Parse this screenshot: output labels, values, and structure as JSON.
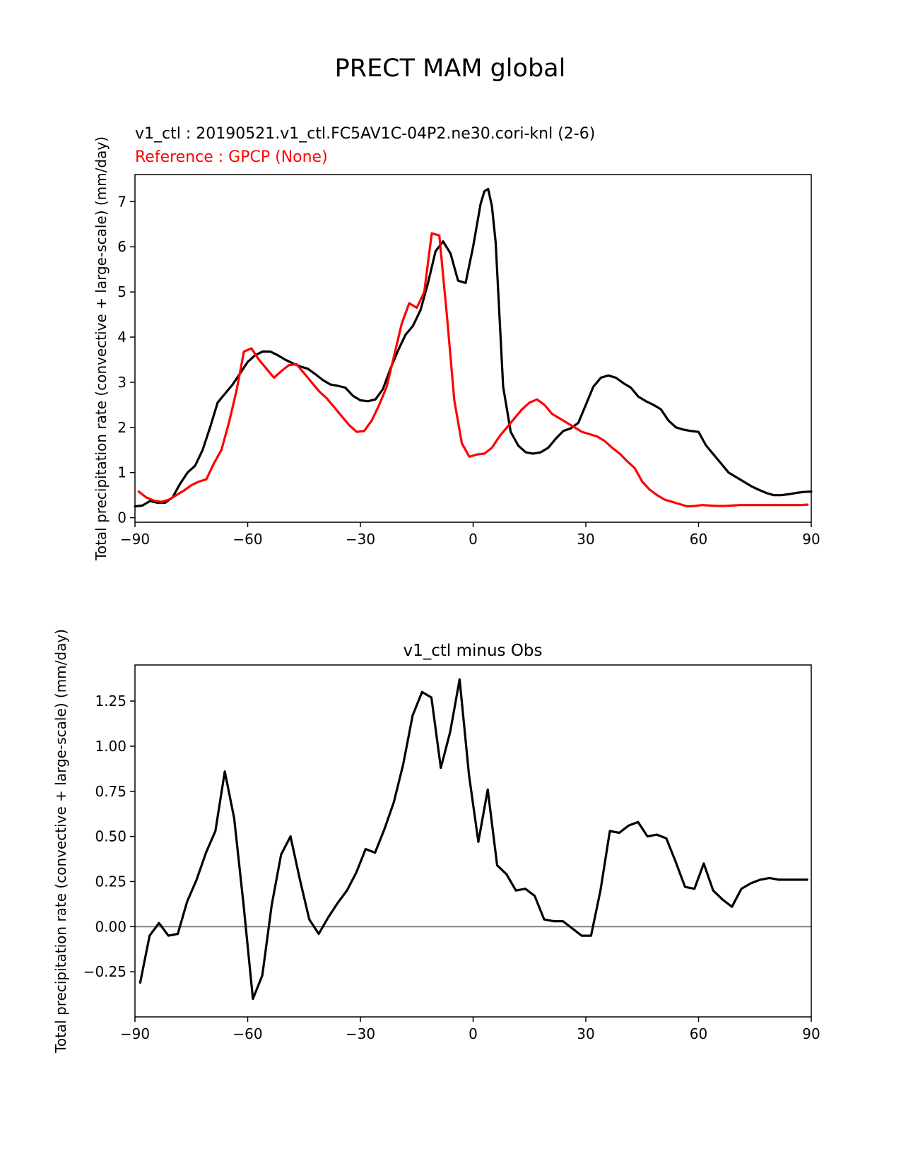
{
  "figure": {
    "title": "PRECT MAM global",
    "colors": {
      "test": "#000000",
      "reference": "#ff0000",
      "zero_line": "#808080"
    }
  },
  "chart_data": [
    {
      "type": "line",
      "subtitle_test": "v1_ctl : 20190521.v1_ctl.FC5AV1C-04P2.ne30.cori-knl (2-6)",
      "subtitle_reference": "Reference : GPCP (None)",
      "xlabel": "",
      "ylabel": "Total precipitation rate (convective + large-scale) (mm/day)",
      "xlim": [
        -90,
        90
      ],
      "ylim": [
        -0.1,
        7.6
      ],
      "xticks": [
        -90,
        -60,
        -30,
        0,
        30,
        60,
        90
      ],
      "xtick_labels": [
        "−90",
        "−60",
        "−30",
        "0",
        "30",
        "60",
        "90"
      ],
      "yticks": [
        0,
        1,
        2,
        3,
        4,
        5,
        6,
        7
      ],
      "ytick_labels": [
        "0",
        "1",
        "2",
        "3",
        "4",
        "5",
        "6",
        "7"
      ],
      "grid": false,
      "series": [
        {
          "color": "#000000",
          "x": [
            -90,
            -88,
            -86,
            -84,
            -82,
            -80,
            -78,
            -76,
            -74,
            -72,
            -70,
            -68,
            -66,
            -64,
            -62,
            -60,
            -58,
            -56,
            -54,
            -52,
            -50,
            -48,
            -46,
            -44,
            -42,
            -40,
            -38,
            -36,
            -34,
            -32,
            -30,
            -28,
            -26,
            -24,
            -22,
            -20,
            -18,
            -16,
            -14,
            -12,
            -10,
            -8,
            -6,
            -4,
            -2,
            0,
            2,
            3,
            4,
            5,
            6,
            7,
            8,
            10,
            12,
            14,
            16,
            18,
            20,
            22,
            24,
            26,
            28,
            30,
            32,
            34,
            36,
            38,
            40,
            42,
            44,
            46,
            48,
            50,
            52,
            54,
            56,
            58,
            60,
            62,
            64,
            66,
            68,
            70,
            72,
            74,
            76,
            78,
            80,
            82,
            84,
            86,
            88,
            90
          ],
          "y": [
            0.25,
            0.27,
            0.37,
            0.33,
            0.33,
            0.45,
            0.75,
            1.0,
            1.15,
            1.5,
            2.0,
            2.55,
            2.75,
            2.95,
            3.2,
            3.45,
            3.6,
            3.68,
            3.68,
            3.6,
            3.5,
            3.42,
            3.35,
            3.3,
            3.18,
            3.05,
            2.95,
            2.92,
            2.88,
            2.7,
            2.6,
            2.58,
            2.62,
            2.85,
            3.3,
            3.7,
            4.05,
            4.25,
            4.6,
            5.2,
            5.9,
            6.12,
            5.85,
            5.25,
            5.2,
            6.0,
            6.95,
            7.23,
            7.28,
            6.9,
            6.1,
            4.5,
            2.9,
            1.9,
            1.6,
            1.45,
            1.42,
            1.45,
            1.55,
            1.75,
            1.92,
            1.98,
            2.1,
            2.5,
            2.9,
            3.1,
            3.15,
            3.1,
            2.98,
            2.88,
            2.68,
            2.58,
            2.5,
            2.4,
            2.15,
            2.0,
            1.95,
            1.92,
            1.9,
            1.6,
            1.4,
            1.2,
            1.0,
            0.9,
            0.8,
            0.7,
            0.62,
            0.55,
            0.5,
            0.5,
            0.52,
            0.55,
            0.57,
            0.58
          ]
        },
        {
          "color": "#ff0000",
          "x": [
            -89,
            -87,
            -85,
            -83,
            -81,
            -79,
            -77,
            -75,
            -73,
            -71,
            -69,
            -67,
            -65,
            -63,
            -61,
            -59,
            -57,
            -55,
            -53,
            -51,
            -49,
            -47,
            -45,
            -43,
            -41,
            -39,
            -37,
            -35,
            -33,
            -31,
            -29,
            -27,
            -25,
            -23,
            -21,
            -19,
            -17,
            -15,
            -13,
            -11,
            -9,
            -7,
            -5,
            -3,
            -1,
            1,
            3,
            5,
            7,
            9,
            11,
            13,
            15,
            17,
            19,
            21,
            23,
            25,
            27,
            29,
            31,
            33,
            35,
            37,
            39,
            41,
            43,
            45,
            47,
            49,
            51,
            53,
            55,
            57,
            59,
            61,
            63,
            65,
            67,
            69,
            71,
            73,
            75,
            77,
            79,
            81,
            83,
            85,
            87,
            89
          ],
          "y": [
            0.58,
            0.45,
            0.38,
            0.35,
            0.4,
            0.5,
            0.6,
            0.72,
            0.8,
            0.85,
            1.2,
            1.5,
            2.1,
            2.8,
            3.68,
            3.75,
            3.5,
            3.3,
            3.1,
            3.25,
            3.38,
            3.4,
            3.2,
            3.0,
            2.8,
            2.65,
            2.45,
            2.25,
            2.05,
            1.9,
            1.92,
            2.15,
            2.5,
            2.9,
            3.6,
            4.3,
            4.75,
            4.65,
            5.0,
            6.3,
            6.25,
            4.5,
            2.6,
            1.65,
            1.35,
            1.4,
            1.42,
            1.55,
            1.8,
            2.0,
            2.2,
            2.4,
            2.55,
            2.62,
            2.5,
            2.3,
            2.2,
            2.1,
            2.0,
            1.9,
            1.85,
            1.8,
            1.7,
            1.55,
            1.42,
            1.25,
            1.1,
            0.8,
            0.62,
            0.5,
            0.4,
            0.35,
            0.3,
            0.25,
            0.26,
            0.28,
            0.27,
            0.26,
            0.26,
            0.27,
            0.28,
            0.28,
            0.28,
            0.28,
            0.28,
            0.28,
            0.28,
            0.28,
            0.28,
            0.29
          ]
        }
      ]
    },
    {
      "type": "line",
      "title": "v1_ctl minus Obs",
      "xlabel": "",
      "ylabel": "Total precipitation rate (convective + large-scale) (mm/day)",
      "xlim": [
        -90,
        90
      ],
      "ylim": [
        -0.5,
        1.45
      ],
      "xticks": [
        -90,
        -60,
        -30,
        0,
        30,
        60,
        90
      ],
      "xtick_labels": [
        "−90",
        "−60",
        "−30",
        "0",
        "30",
        "60",
        "90"
      ],
      "yticks": [
        -0.25,
        0.0,
        0.25,
        0.5,
        0.75,
        1.0,
        1.25
      ],
      "ytick_labels": [
        "−0.25",
        "0.00",
        "0.25",
        "0.50",
        "0.75",
        "1.00",
        "1.25"
      ],
      "grid": false,
      "zero_line": true,
      "series": [
        {
          "color": "#000000",
          "x": [
            -88.6,
            -86.1,
            -83.6,
            -81.1,
            -78.6,
            -76.1,
            -73.6,
            -71.1,
            -68.6,
            -66.1,
            -63.6,
            -61.1,
            -58.6,
            -56.1,
            -53.6,
            -51.1,
            -48.6,
            -46.1,
            -43.6,
            -41.1,
            -38.6,
            -36.1,
            -33.6,
            -31.1,
            -28.6,
            -26.1,
            -23.6,
            -21.1,
            -18.6,
            -16.1,
            -13.6,
            -11.1,
            -8.6,
            -6.1,
            -3.6,
            -1.1,
            1.4,
            3.9,
            6.4,
            8.9,
            11.4,
            13.9,
            16.4,
            18.9,
            21.4,
            23.9,
            26.4,
            28.9,
            31.4,
            33.9,
            36.4,
            38.9,
            41.4,
            43.9,
            46.4,
            48.9,
            51.4,
            53.9,
            56.4,
            58.9,
            61.4,
            63.9,
            66.4,
            68.9,
            71.4,
            73.9,
            76.4,
            78.9,
            81.4,
            83.9,
            86.4,
            88.9
          ],
          "y": [
            -0.31,
            -0.05,
            0.02,
            -0.05,
            -0.04,
            0.14,
            0.26,
            0.41,
            0.53,
            0.86,
            0.6,
            0.12,
            -0.4,
            -0.27,
            0.12,
            0.4,
            0.5,
            0.26,
            0.04,
            -0.04,
            0.05,
            0.13,
            0.2,
            0.3,
            0.43,
            0.41,
            0.54,
            0.69,
            0.9,
            1.17,
            1.3,
            1.27,
            0.88,
            1.08,
            1.37,
            0.84,
            0.47,
            0.76,
            0.34,
            0.29,
            0.2,
            0.21,
            0.17,
            0.04,
            0.03,
            0.03,
            -0.01,
            -0.05,
            -0.05,
            0.2,
            0.53,
            0.52,
            0.56,
            0.58,
            0.5,
            0.51,
            0.49,
            0.36,
            0.22,
            0.21,
            0.35,
            0.2,
            0.15,
            0.11,
            0.21,
            0.24,
            0.26,
            0.27,
            0.26,
            0.26,
            0.26,
            0.26
          ]
        }
      ]
    }
  ]
}
